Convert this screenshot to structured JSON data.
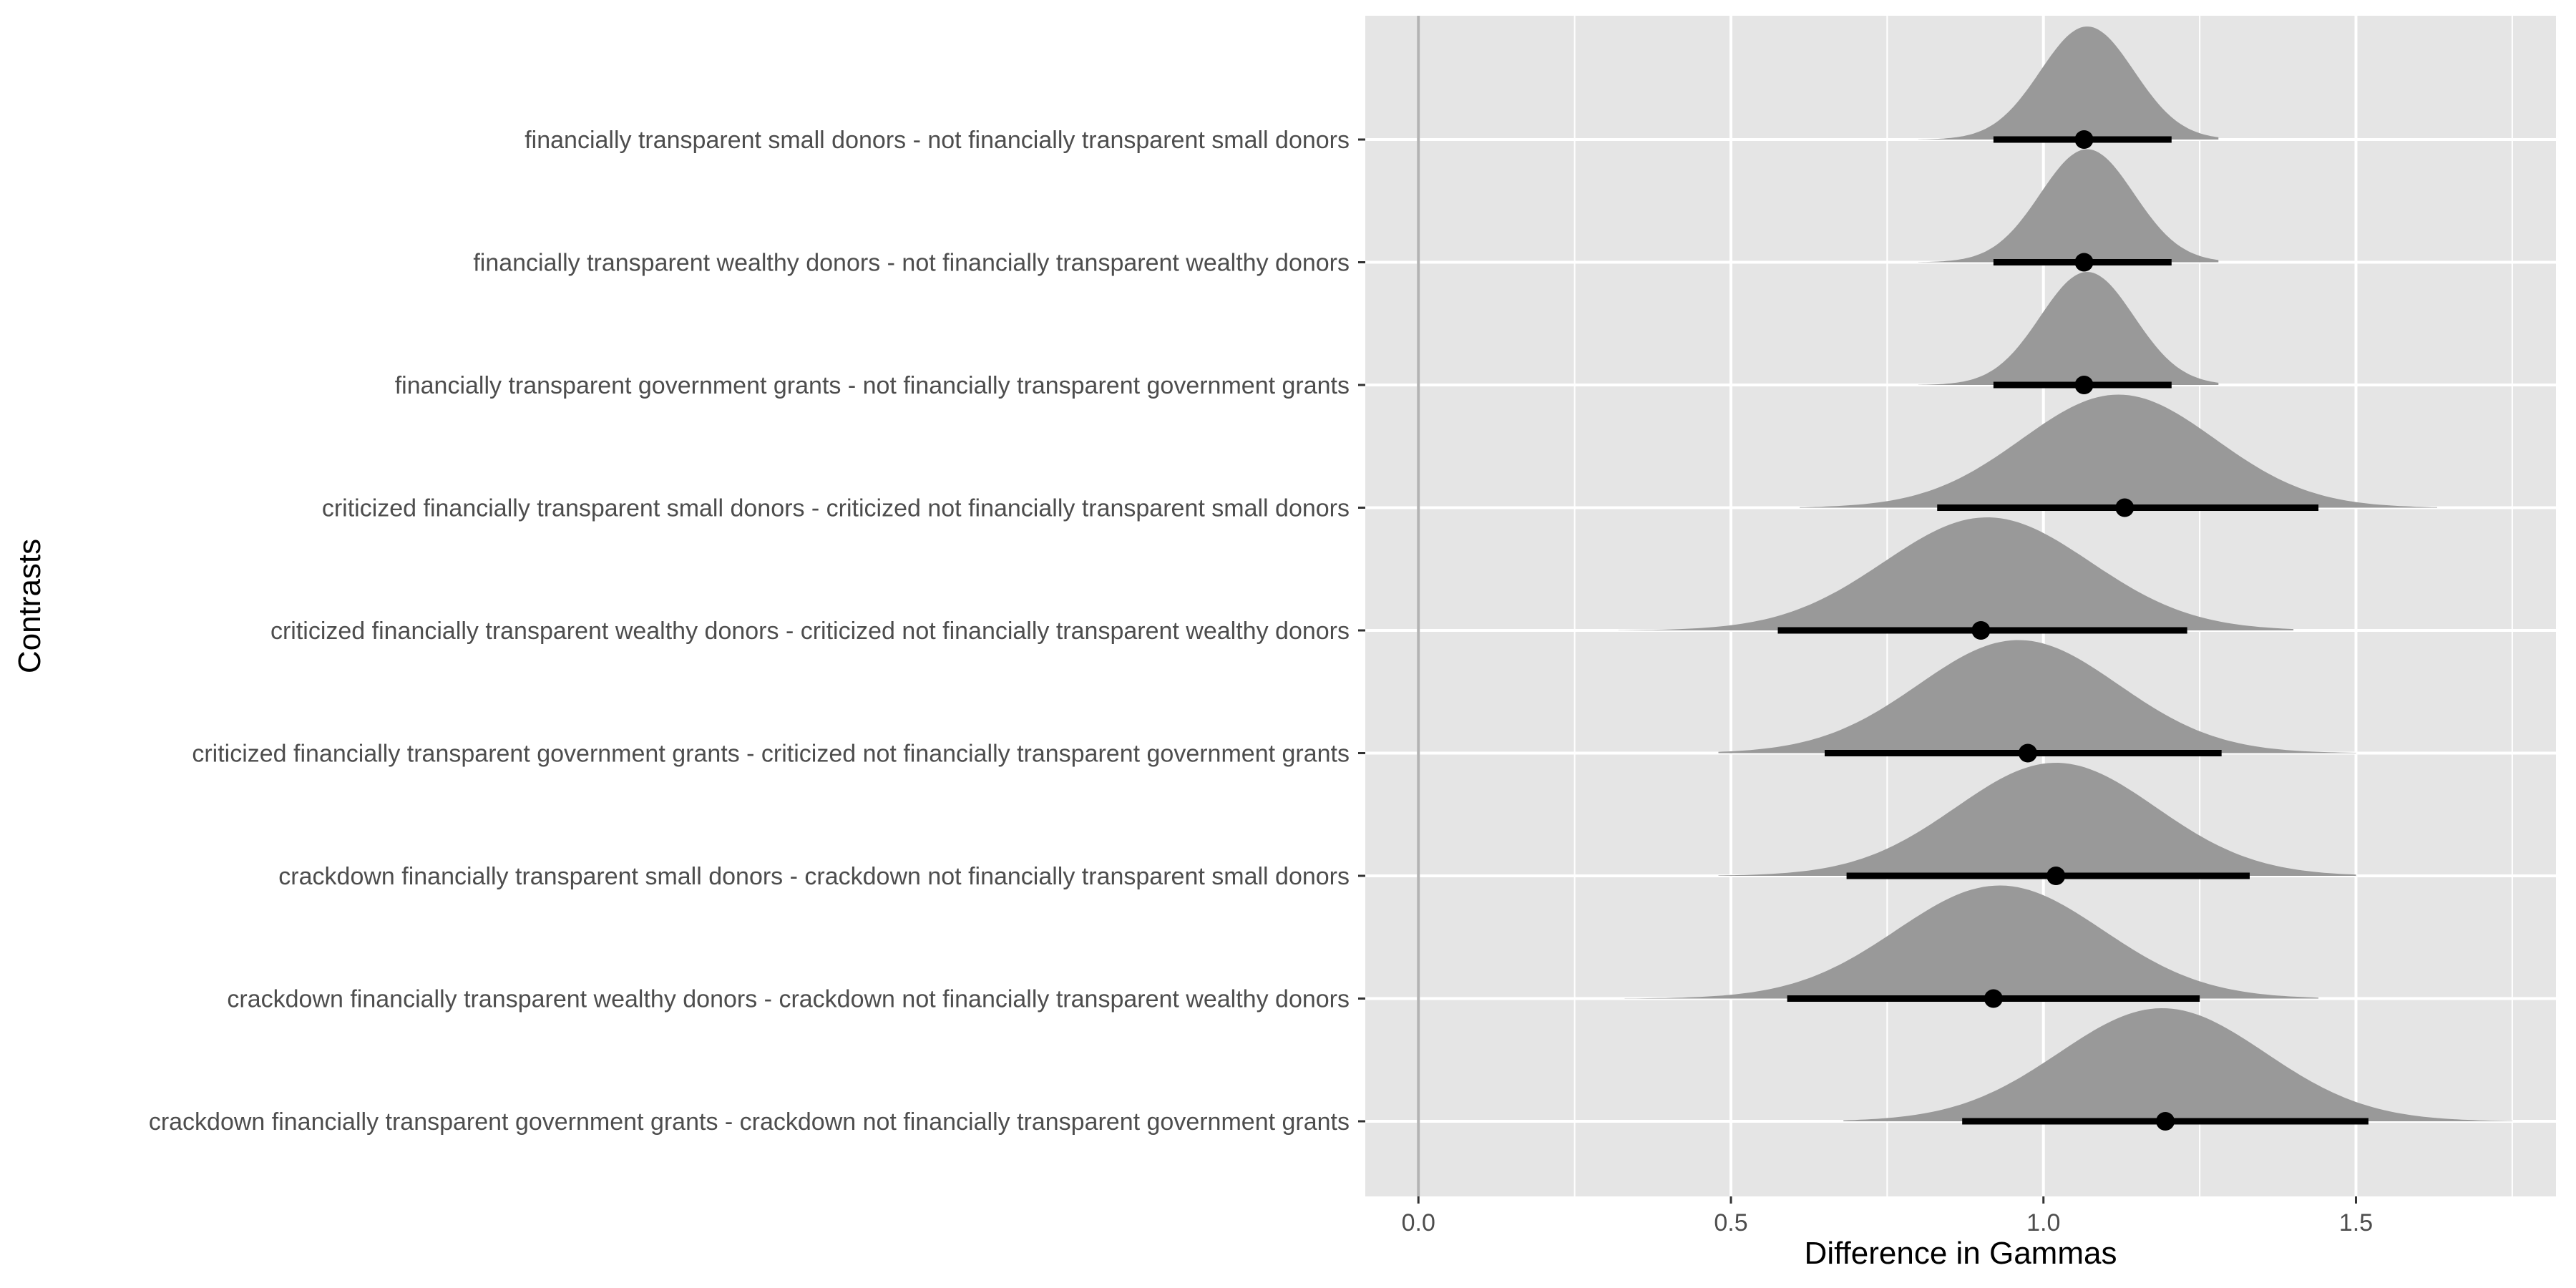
{
  "chart_data": {
    "type": "halfeye",
    "xlabel": "Difference in Gammas",
    "ylabel": "Contrasts",
    "xlim": [
      -0.085,
      1.82
    ],
    "xticks": [
      0.0,
      0.5,
      1.0,
      1.5
    ],
    "xtick_labels": [
      "0.0",
      "0.5",
      "1.0",
      "1.5"
    ],
    "reference_line": 0.0,
    "grid": true,
    "colors": {
      "panel": "#e5e5e5",
      "grid": "#ffffff",
      "density": "#999999",
      "interval": "#000000",
      "reference": "#b3b3b3"
    },
    "contrasts": [
      {
        "label": "financially transparent small donors - not financially transparent small donors",
        "point": 1.065,
        "lower": 0.92,
        "upper": 1.205,
        "dens_min": 0.8,
        "dens_max": 1.28,
        "mode": 1.07,
        "sd": 0.075
      },
      {
        "label": "financially transparent wealthy donors - not financially transparent wealthy donors",
        "point": 1.065,
        "lower": 0.92,
        "upper": 1.205,
        "dens_min": 0.8,
        "dens_max": 1.28,
        "mode": 1.07,
        "sd": 0.075
      },
      {
        "label": "financially transparent government grants - not financially transparent government grants",
        "point": 1.065,
        "lower": 0.92,
        "upper": 1.205,
        "dens_min": 0.8,
        "dens_max": 1.28,
        "mode": 1.07,
        "sd": 0.075
      },
      {
        "label": "criticized financially transparent small donors - criticized not financially transparent small donors",
        "point": 1.13,
        "lower": 0.83,
        "upper": 1.44,
        "dens_min": 0.61,
        "dens_max": 1.63,
        "mode": 1.12,
        "sd": 0.155
      },
      {
        "label": "criticized financially transparent wealthy donors - criticized not financially transparent wealthy donors",
        "point": 0.9,
        "lower": 0.575,
        "upper": 1.23,
        "dens_min": 0.32,
        "dens_max": 1.4,
        "mode": 0.91,
        "sd": 0.165
      },
      {
        "label": "criticized financially transparent government grants - criticized not financially transparent government grants",
        "point": 0.975,
        "lower": 0.65,
        "upper": 1.285,
        "dens_min": 0.48,
        "dens_max": 1.5,
        "mode": 0.96,
        "sd": 0.16
      },
      {
        "label": "crackdown financially transparent small donors - crackdown not financially transparent small donors",
        "point": 1.02,
        "lower": 0.685,
        "upper": 1.33,
        "dens_min": 0.48,
        "dens_max": 1.5,
        "mode": 1.02,
        "sd": 0.16
      },
      {
        "label": "crackdown financially transparent wealthy donors - crackdown not financially transparent wealthy donors",
        "point": 0.92,
        "lower": 0.59,
        "upper": 1.25,
        "dens_min": 0.33,
        "dens_max": 1.44,
        "mode": 0.93,
        "sd": 0.165
      },
      {
        "label": "crackdown financially transparent government grants - crackdown not financially transparent government grants",
        "point": 1.195,
        "lower": 0.87,
        "upper": 1.52,
        "dens_min": 0.68,
        "dens_max": 1.75,
        "mode": 1.19,
        "sd": 0.165
      }
    ]
  }
}
